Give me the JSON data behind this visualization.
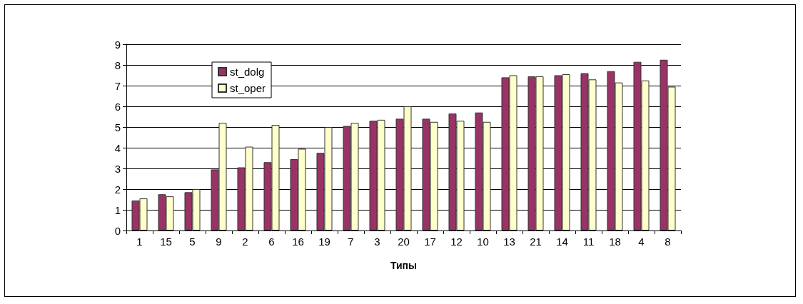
{
  "chart_data": {
    "type": "bar",
    "xlabel": "Типы",
    "categories": [
      "1",
      "15",
      "5",
      "9",
      "2",
      "6",
      "16",
      "19",
      "7",
      "3",
      "20",
      "17",
      "12",
      "10",
      "13",
      "21",
      "14",
      "11",
      "18",
      "4",
      "8"
    ],
    "series": [
      {
        "name": "st_dolg",
        "color": "#993366",
        "values": [
          1.45,
          1.75,
          1.85,
          2.95,
          3.05,
          3.3,
          3.45,
          3.75,
          5.05,
          5.3,
          5.4,
          5.4,
          5.65,
          5.7,
          7.4,
          7.45,
          7.5,
          7.6,
          7.7,
          8.15,
          8.25
        ]
      },
      {
        "name": "st_oper",
        "color": "#ffffcc",
        "values": [
          1.55,
          1.65,
          2.0,
          5.2,
          4.05,
          5.1,
          3.95,
          5.0,
          5.2,
          5.35,
          6.0,
          5.25,
          5.3,
          5.25,
          7.5,
          7.45,
          7.55,
          7.3,
          7.15,
          7.25,
          6.95
        ]
      }
    ],
    "ylim": [
      0,
      9
    ],
    "yticks": [
      0,
      1,
      2,
      3,
      4,
      5,
      6,
      7,
      8,
      9
    ],
    "grid": "y",
    "legend": "top left"
  }
}
